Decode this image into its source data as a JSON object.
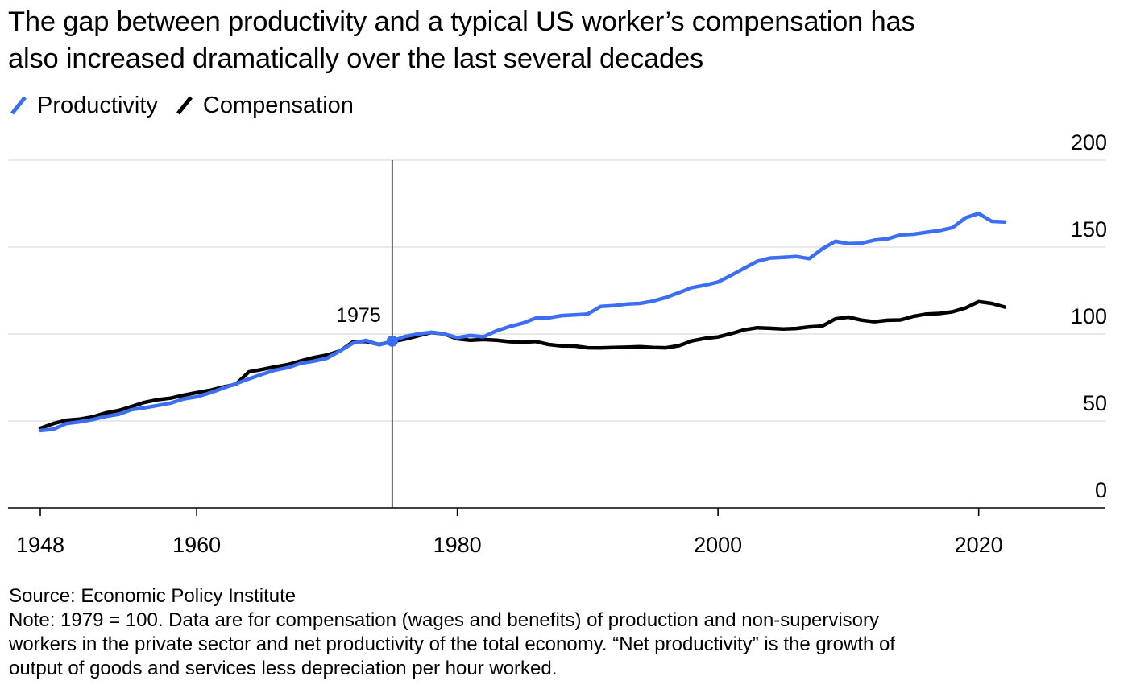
{
  "header": {
    "title_line1": "The gap between productivity and a typical US worker’s compensation has",
    "title_line2": "also increased dramatically over the last several decades"
  },
  "legend": [
    {
      "label": "Productivity",
      "color": "#3b6ef5"
    },
    {
      "label": "Compensation",
      "color": "#000000"
    }
  ],
  "annotation": {
    "label": "1975",
    "year": 1975
  },
  "footer": {
    "source": "Source: Economic Policy Institute",
    "note_line1": "Note: 1979 = 100. Data are for compensation (wages and benefits) of production and non-supervisory",
    "note_line2": "workers in the private sector and net productivity of the total economy. “Net productivity” is the growth of",
    "note_line3": "output of goods and services less depreciation per hour worked."
  },
  "chart_data": {
    "type": "line",
    "title": "The gap between productivity and a typical US worker’s compensation has also increased dramatically over the last several decades",
    "xlabel": "",
    "ylabel": "",
    "xlim": [
      1948,
      2022
    ],
    "ylim": [
      0,
      200
    ],
    "x_ticks": [
      "1948",
      "1960",
      "1980",
      "2000",
      "2020"
    ],
    "y_ticks": [
      "200",
      "150",
      "100",
      "50",
      "0"
    ],
    "grid": true,
    "legend_position": "top-left",
    "x": [
      1948,
      1949,
      1950,
      1951,
      1952,
      1953,
      1954,
      1955,
      1956,
      1957,
      1958,
      1959,
      1960,
      1961,
      1962,
      1963,
      1964,
      1965,
      1966,
      1967,
      1968,
      1969,
      1970,
      1971,
      1972,
      1973,
      1974,
      1975,
      1976,
      1977,
      1978,
      1979,
      1980,
      1981,
      1982,
      1983,
      1984,
      1985,
      1986,
      1987,
      1988,
      1989,
      1990,
      1991,
      1992,
      1993,
      1994,
      1995,
      1996,
      1997,
      1998,
      1999,
      2000,
      2001,
      2002,
      2003,
      2004,
      2005,
      2006,
      2007,
      2008,
      2009,
      2010,
      2011,
      2012,
      2013,
      2014,
      2015,
      2016,
      2017,
      2018,
      2019,
      2020,
      2021,
      2022
    ],
    "series": [
      {
        "name": "Productivity",
        "color": "#3b6ef5",
        "values": [
          44.5,
          45.3,
          48.5,
          49.5,
          50.8,
          52.6,
          53.8,
          56.5,
          57.6,
          58.9,
          60.3,
          62.7,
          63.9,
          66.1,
          68.8,
          71.4,
          74.2,
          76.8,
          79.2,
          80.7,
          83.2,
          84.4,
          86.1,
          90.3,
          94.8,
          96.3,
          93.8,
          95.9,
          98.6,
          100.0,
          101.0,
          100.0,
          97.9,
          99.1,
          98.4,
          101.8,
          104.3,
          106.2,
          109.1,
          109.3,
          110.6,
          111.0,
          111.5,
          115.9,
          116.3,
          117.2,
          117.6,
          118.9,
          121.0,
          123.8,
          126.7,
          128.1,
          129.9,
          133.7,
          137.8,
          141.8,
          143.7,
          144.1,
          144.6,
          143.4,
          149.0,
          153.3,
          152.0,
          152.2,
          154.0,
          154.7,
          157.0,
          157.4,
          158.5,
          159.5,
          161.2,
          166.9,
          169.3,
          164.8,
          164.5
        ]
      },
      {
        "name": "Compensation",
        "color": "#000000",
        "values": [
          45.8,
          48.5,
          50.4,
          51.0,
          52.3,
          54.6,
          56.0,
          58.3,
          60.7,
          62.2,
          63.1,
          64.8,
          66.3,
          67.6,
          69.5,
          71.0,
          78.2,
          79.6,
          81.1,
          82.4,
          84.6,
          86.5,
          87.9,
          90.3,
          95.5,
          95.7,
          94.0,
          95.5,
          97.1,
          99.0,
          100.9,
          100.0,
          97.2,
          96.4,
          96.8,
          96.4,
          95.6,
          95.2,
          95.7,
          94.0,
          93.2,
          93.1,
          92.1,
          92.0,
          92.2,
          92.4,
          92.7,
          92.2,
          92.1,
          93.3,
          96.0,
          97.5,
          98.3,
          100.2,
          102.4,
          103.6,
          103.3,
          102.9,
          103.2,
          104.1,
          104.6,
          108.7,
          109.7,
          108.0,
          107.1,
          107.9,
          108.1,
          110.2,
          111.5,
          111.8,
          112.8,
          115.0,
          118.6,
          117.6,
          115.5
        ]
      }
    ]
  }
}
